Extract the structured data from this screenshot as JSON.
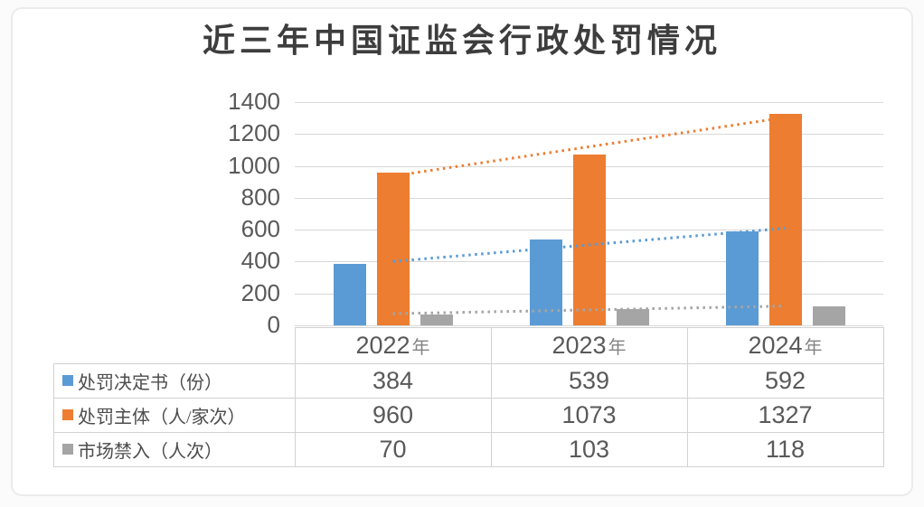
{
  "title": "近三年中国证监会行政处罚情况",
  "chart_data": {
    "type": "bar",
    "title": "近三年中国证监会行政处罚情况",
    "categories": [
      {
        "label": "2022年",
        "num": "2022",
        "suffix": "年"
      },
      {
        "label": "2023年",
        "num": "2023",
        "suffix": "年"
      },
      {
        "label": "2024年",
        "num": "2024",
        "suffix": "年"
      }
    ],
    "series": [
      {
        "key": "penalty-decisions",
        "name": "处罚决定书（份）",
        "color": "#5B9BD5",
        "values": [
          384,
          539,
          592
        ],
        "trendline": "dotted"
      },
      {
        "key": "penalty-subjects",
        "name": "处罚主体（人/家次）",
        "color": "#ED7D31",
        "values": [
          960,
          1073,
          1327
        ],
        "trendline": "dotted"
      },
      {
        "key": "market-bans",
        "name": "市场禁入（人次）",
        "color": "#A5A5A5",
        "values": [
          70,
          103,
          118
        ],
        "trendline": "dotted"
      }
    ],
    "xlabel": "",
    "ylabel": "",
    "ylim": [
      0,
      1400
    ],
    "yticks": [
      "0",
      "200",
      "400",
      "600",
      "800",
      "1000",
      "1200",
      "1400"
    ],
    "grid": true,
    "legend_position": "data-table-rows",
    "data_table": true
  },
  "colors": {
    "series_blue": "#5B9BD5",
    "series_orange": "#ED7D31",
    "series_gray": "#A5A5A5",
    "gridline": "#d8d8d8",
    "table_border": "#d2d2d2",
    "axis_text": "#595959",
    "title_text": "#3d3d3d",
    "card_background": "#ffffff"
  }
}
